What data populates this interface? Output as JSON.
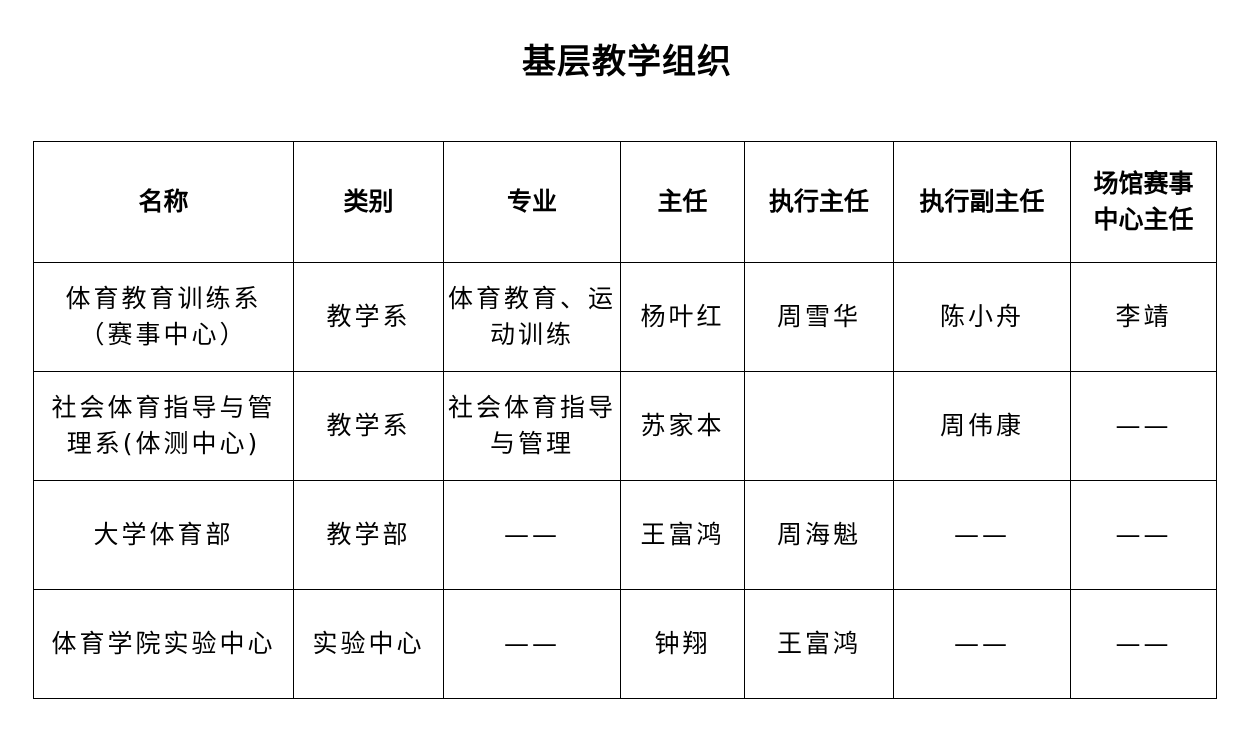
{
  "title": "基层教学组织",
  "headers": [
    "名称",
    "类别",
    "专业",
    "主任",
    "执行主任",
    "执行副主任",
    "场馆赛事中心主任"
  ],
  "rows": [
    [
      "体育教育训练系（赛事中心）",
      "教学系",
      "体育教育、运动训练",
      "杨叶红",
      "周雪华",
      "陈小舟",
      "李靖"
    ],
    [
      "社会体育指导与管理系(体测中心)",
      "教学系",
      "社会体育指导与管理",
      "苏家本",
      "",
      "周伟康",
      "——"
    ],
    [
      "大学体育部",
      "教学部",
      "——",
      "王富鸿",
      "周海魁",
      "——",
      "——"
    ],
    [
      "体育学院实验中心",
      "实验中心",
      "——",
      "钟翔",
      "王富鸿",
      "——",
      "——"
    ]
  ]
}
